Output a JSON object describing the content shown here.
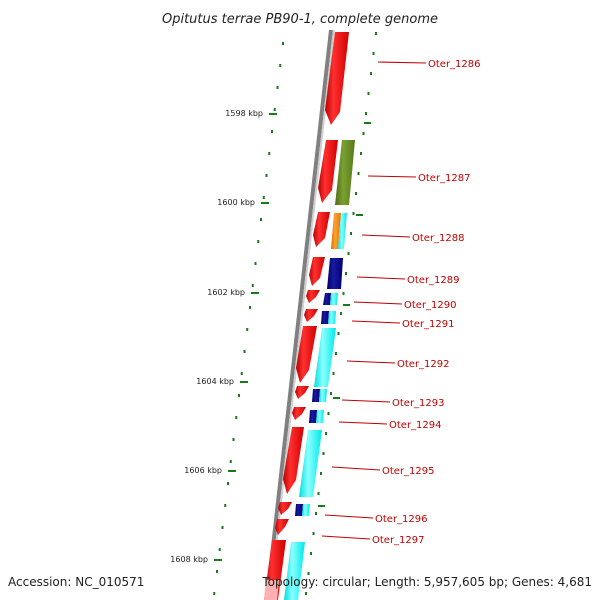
{
  "title": "Opitutus terrae PB90-1, complete genome",
  "ticks": [
    "1598 kbp",
    "1600 kbp",
    "1602 kbp",
    "1604 kbp",
    "1606 kbp",
    "1608 kbp"
  ],
  "genes": [
    "Oter_1286",
    "Oter_1287",
    "Oter_1288",
    "Oter_1289",
    "Oter_1290",
    "Oter_1291",
    "Oter_1292",
    "Oter_1293",
    "Oter_1294",
    "Oter_1295",
    "Oter_1296",
    "Oter_1297"
  ],
  "footer": {
    "accession": "Accession: NC_010571",
    "stats": "Topology: circular; Length: 5,957,605 bp; Genes: 4,681"
  },
  "colors": {
    "cds": "#ff0000",
    "label": "#c00000",
    "ticks": "#1a7a1a",
    "olive": "#6b8e23",
    "orange": "#ff8c00",
    "navy": "#00007f",
    "cyan": "#00ffff",
    "backbone": "#808080"
  }
}
